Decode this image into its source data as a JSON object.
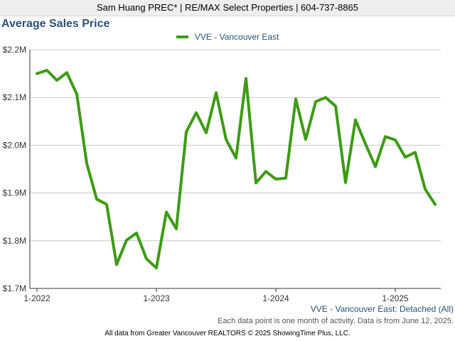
{
  "header": {
    "text": "Sam Huang PREC* | RE/MAX Select Properties | 604-737-8865"
  },
  "chart_data": {
    "type": "line",
    "title": "Average Sales Price",
    "legend": {
      "label": "VVE - Vancouver East",
      "position": "top-center"
    },
    "series_caption": "VVE - Vancouver East: Detached (All)",
    "ylim": [
      1700000,
      2200000
    ],
    "y_ticks": [
      {
        "value": 2200000,
        "label": "$2.2M"
      },
      {
        "value": 2100000,
        "label": "$2.1M"
      },
      {
        "value": 2000000,
        "label": "$2.0M"
      },
      {
        "value": 1900000,
        "label": "$1.9M"
      },
      {
        "value": 1800000,
        "label": "$1.8M"
      },
      {
        "value": 1700000,
        "label": "$1.7M"
      }
    ],
    "x_ticks": [
      {
        "date": "2022-01",
        "label": "1-2022"
      },
      {
        "date": "2023-01",
        "label": "1-2023"
      },
      {
        "date": "2024-01",
        "label": "1-2024"
      },
      {
        "date": "2025-01",
        "label": "1-2025"
      }
    ],
    "grid": "horizontal",
    "line_color": "#3d9b14",
    "series": [
      {
        "name": "VVE - Vancouver East",
        "x": [
          "2022-01",
          "2022-02",
          "2022-03",
          "2022-04",
          "2022-05",
          "2022-06",
          "2022-07",
          "2022-08",
          "2022-09",
          "2022-10",
          "2022-11",
          "2022-12",
          "2023-01",
          "2023-02",
          "2023-03",
          "2023-04",
          "2023-05",
          "2023-06",
          "2023-07",
          "2023-08",
          "2023-09",
          "2023-10",
          "2023-11",
          "2023-12",
          "2024-01",
          "2024-02",
          "2024-03",
          "2024-04",
          "2024-05",
          "2024-06",
          "2024-07",
          "2024-08",
          "2024-09",
          "2024-10",
          "2024-11",
          "2024-12",
          "2025-01",
          "2025-02",
          "2025-03",
          "2025-04",
          "2025-05"
        ],
        "values": [
          2150000,
          2157000,
          2136000,
          2152000,
          2107000,
          1962000,
          1887000,
          1876000,
          1750000,
          1801000,
          1816000,
          1762000,
          1743000,
          1860000,
          1825000,
          2028000,
          2068000,
          2026000,
          2110000,
          2012000,
          1973000,
          2140000,
          1921000,
          1945000,
          1929000,
          1931000,
          2097000,
          2012000,
          2091000,
          2100000,
          2082000,
          1922000,
          2053000,
          2003000,
          1955000,
          2018000,
          2011000,
          1975000,
          1985000,
          1908000,
          1876000
        ]
      }
    ]
  },
  "notes": {
    "data_point": "Each data point is one month of activity. Data is from June 12, 2025.",
    "footer": "All data from Greater Vancouver REALTORS © 2025 ShowingTime Plus, LLC."
  }
}
